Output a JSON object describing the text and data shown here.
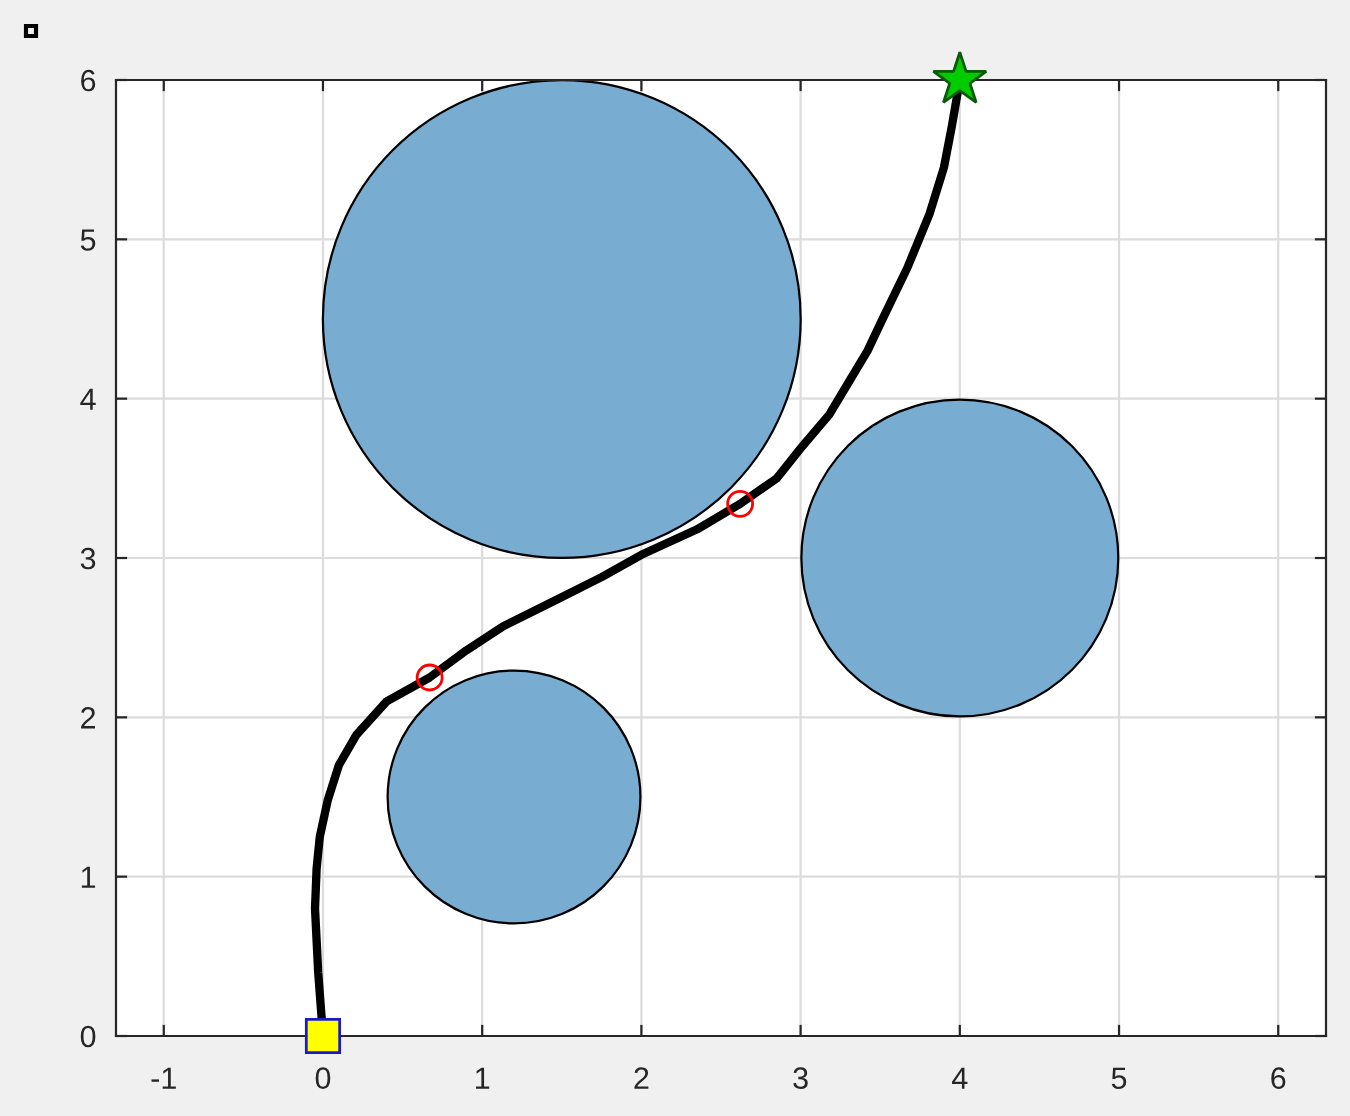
{
  "chart_data": {
    "type": "scatter",
    "xlim": [
      -1.3,
      6.3
    ],
    "ylim": [
      0,
      6
    ],
    "xticks": [
      -1,
      0,
      1,
      2,
      3,
      4,
      5,
      6
    ],
    "yticks": [
      0,
      1,
      2,
      3,
      4,
      5,
      6
    ],
    "grid": true,
    "series": [
      {
        "type": "bubble",
        "color": "#78add1",
        "x": [
          1.5,
          4,
          1.2
        ],
        "values": [
          4.5,
          3,
          1.5
        ],
        "sizes": [
          1,
          0.44,
          0.28
        ]
      },
      {
        "type": "line",
        "color": "#000000",
        "marker": "none",
        "x": [
          0,
          -0.03,
          -0.05,
          -0.04,
          -0.02,
          0.03,
          0.1,
          0.21,
          0.4,
          0.67,
          0.9,
          1.13,
          1.47,
          1.75,
          2.0,
          2.35,
          2.62,
          2.85,
          3.01,
          3.18,
          3.3,
          3.42,
          3.51,
          3.67,
          3.81,
          3.9,
          3.95,
          4
        ],
        "values": [
          0,
          0.4,
          0.8,
          1.05,
          1.25,
          1.48,
          1.7,
          1.89,
          2.1,
          2.25,
          2.42,
          2.57,
          2.74,
          2.88,
          3.02,
          3.18,
          3.34,
          3.5,
          3.7,
          3.9,
          4.1,
          4.3,
          4.49,
          4.82,
          5.16,
          5.45,
          5.71,
          6
        ]
      },
      {
        "color": "#ff0000",
        "marker": "circle",
        "x": [
          0.67,
          2.62
        ],
        "values": [
          2.25,
          3.34
        ]
      },
      {
        "color": "#ffff00",
        "marker": "square",
        "x": [
          0
        ],
        "values": [
          0
        ]
      },
      {
        "color": "#00cc00",
        "marker": "star",
        "x": [
          4
        ],
        "values": [
          6
        ]
      }
    ]
  }
}
